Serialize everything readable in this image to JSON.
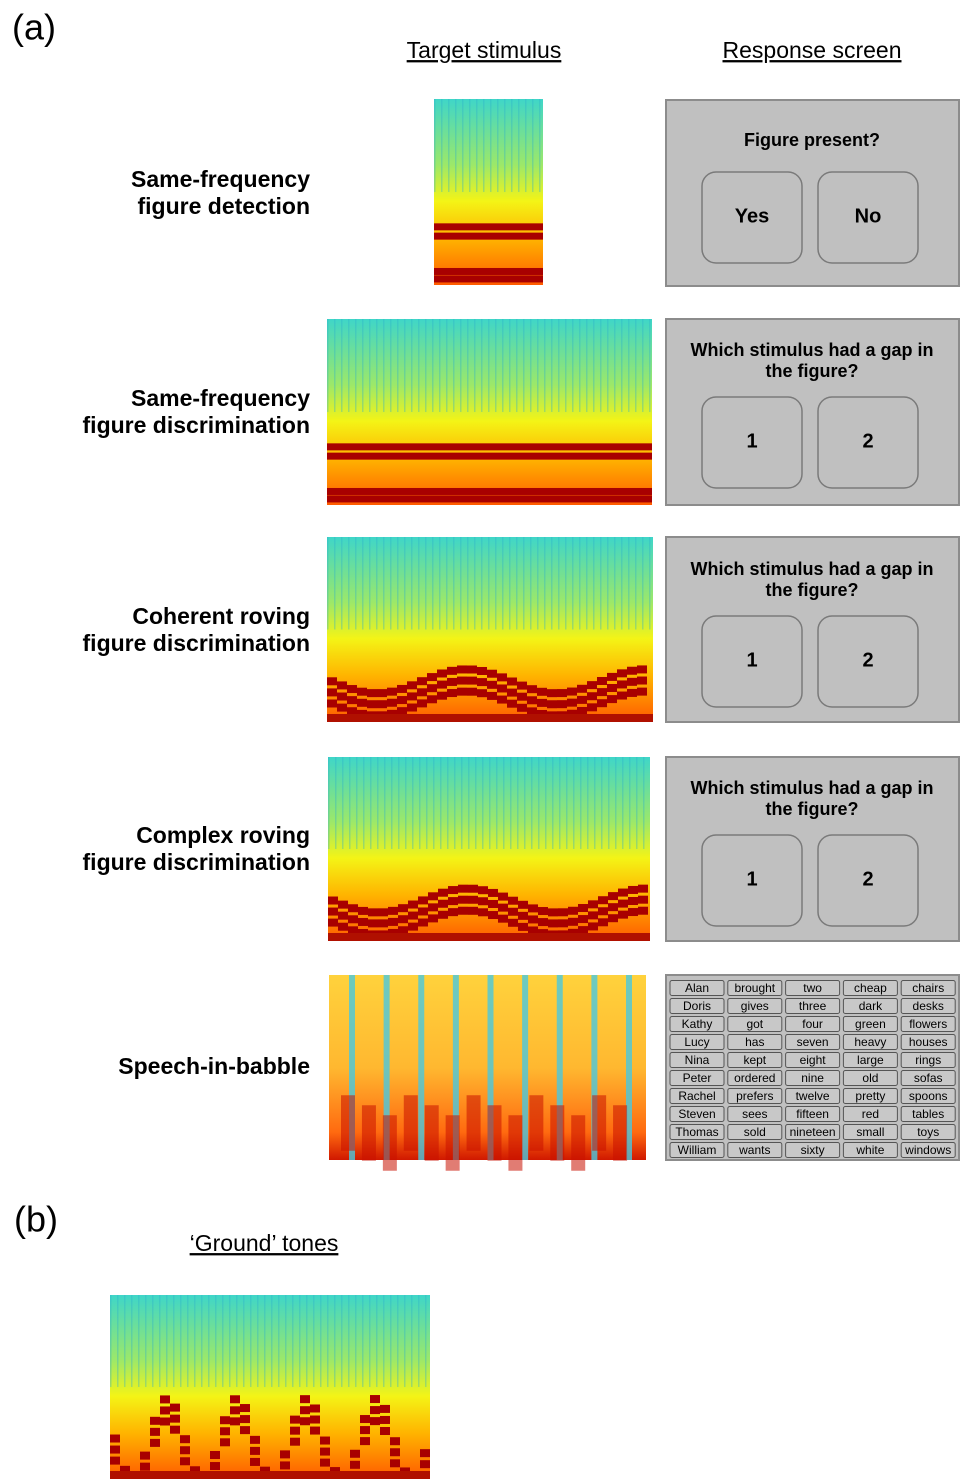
{
  "header": {
    "panel_a": "(a)",
    "col_target": "Target stimulus",
    "col_response": "Response screen"
  },
  "rows": [
    {
      "label": [
        "Same-frequency",
        "figure detection"
      ],
      "question": [
        "Figure present?"
      ],
      "buttons": [
        "Yes",
        "No"
      ]
    },
    {
      "label": [
        "Same-frequency",
        "figure discrimination"
      ],
      "question": [
        "Which stimulus had a gap in",
        "the figure?"
      ],
      "buttons": [
        "1",
        "2"
      ]
    },
    {
      "label": [
        "Coherent roving",
        "figure discrimination"
      ],
      "question": [
        "Which stimulus had a gap in",
        "the figure?"
      ],
      "buttons": [
        "1",
        "2"
      ]
    },
    {
      "label": [
        "Complex roving",
        "figure discrimination"
      ],
      "question": [
        "Which stimulus had a gap in",
        "the figure?"
      ],
      "buttons": [
        "1",
        "2"
      ]
    }
  ],
  "speech": {
    "label": "Speech-in-babble",
    "words": [
      [
        "Alan",
        "Doris",
        "Kathy",
        "Lucy",
        "Nina",
        "Peter",
        "Rachel",
        "Steven",
        "Thomas",
        "William"
      ],
      [
        "brought",
        "gives",
        "got",
        "has",
        "kept",
        "ordered",
        "prefers",
        "sees",
        "sold",
        "wants"
      ],
      [
        "two",
        "three",
        "four",
        "seven",
        "eight",
        "nine",
        "twelve",
        "fifteen",
        "nineteen",
        "sixty"
      ],
      [
        "cheap",
        "dark",
        "green",
        "heavy",
        "large",
        "old",
        "pretty",
        "red",
        "small",
        "white"
      ],
      [
        "chairs",
        "desks",
        "flowers",
        "houses",
        "rings",
        "sofas",
        "spoons",
        "tables",
        "toys",
        "windows"
      ]
    ]
  },
  "panel_b": {
    "label": "(b)",
    "title": "‘Ground’ tones"
  }
}
